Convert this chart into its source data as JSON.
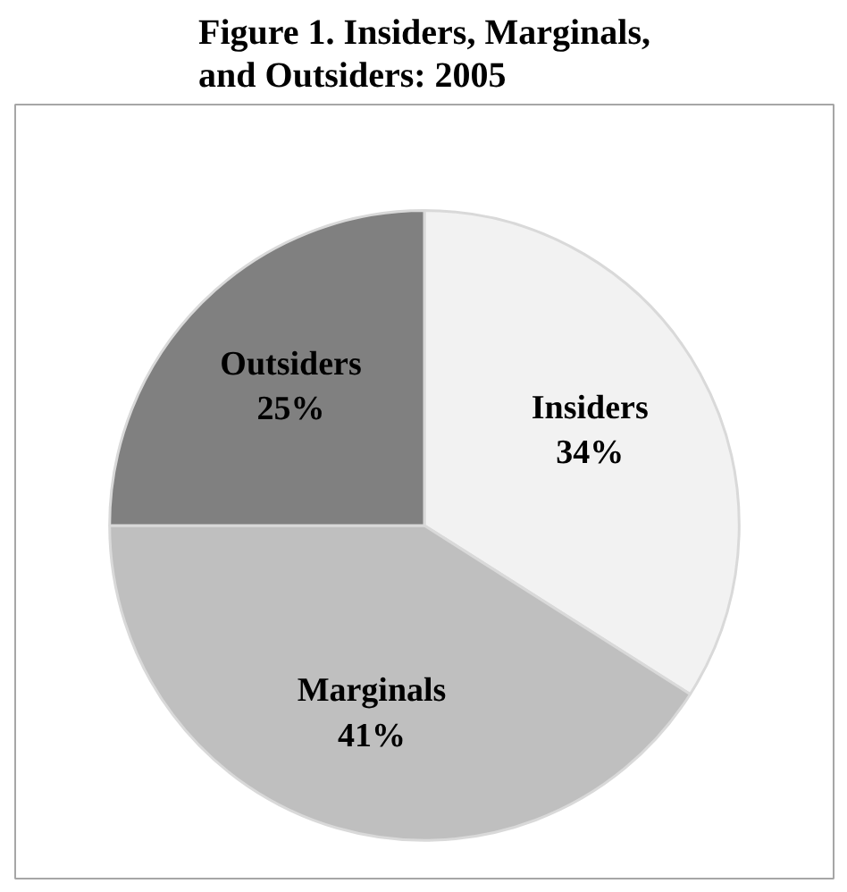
{
  "chart_data": {
    "type": "pie",
    "title": "Figure 1. Insiders, Marginals, and Outsiders: 2005",
    "categories": [
      "Insiders",
      "Marginals",
      "Outsiders"
    ],
    "values": [
      34,
      41,
      25
    ],
    "colors": [
      "#f2f2f2",
      "#bfbfbf",
      "#808080"
    ],
    "value_labels": [
      "34%",
      "41%",
      "25%"
    ]
  }
}
